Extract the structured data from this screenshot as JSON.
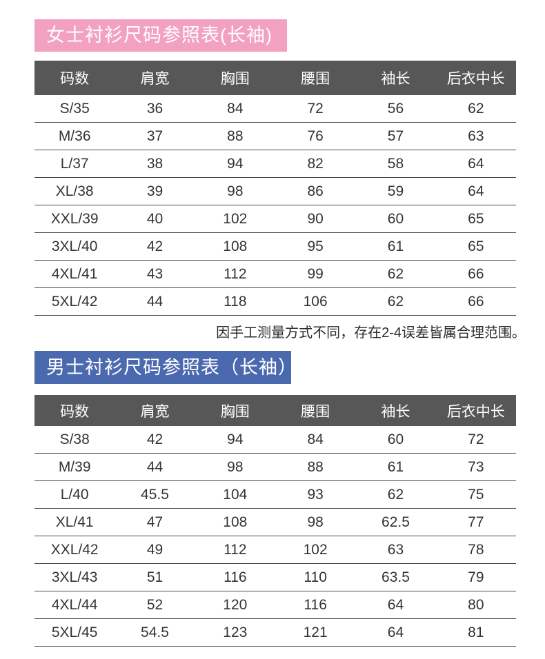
{
  "colors": {
    "women_banner": "#f2a1c1",
    "men_banner": "#4b69af",
    "table_header_bg": "#575757",
    "table_header_text": "#ffffff",
    "body_text": "#333333",
    "row_divider": "#484848",
    "page_background": "#ffffff"
  },
  "note": "因手工测量方式不同，存在2-4误差皆属合理范围。",
  "women": {
    "title": "女士衬衫尺码参照表(长袖)",
    "headers": [
      "码数",
      "肩宽",
      "胸围",
      "腰围",
      "袖长",
      "后衣中长"
    ],
    "rows": [
      [
        "S/35",
        "36",
        "84",
        "72",
        "56",
        "62"
      ],
      [
        "M/36",
        "37",
        "88",
        "76",
        "57",
        "63"
      ],
      [
        "L/37",
        "38",
        "94",
        "82",
        "58",
        "64"
      ],
      [
        "XL/38",
        "39",
        "98",
        "86",
        "59",
        "64"
      ],
      [
        "XXL/39",
        "40",
        "102",
        "90",
        "60",
        "65"
      ],
      [
        "3XL/40",
        "42",
        "108",
        "95",
        "61",
        "65"
      ],
      [
        "4XL/41",
        "43",
        "112",
        "99",
        "62",
        "66"
      ],
      [
        "5XL/42",
        "44",
        "118",
        "106",
        "62",
        "66"
      ]
    ]
  },
  "men": {
    "title": "男士衬衫尺码参照表（长袖）",
    "headers": [
      "码数",
      "肩宽",
      "胸围",
      "腰围",
      "袖长",
      "后衣中长"
    ],
    "rows": [
      [
        "S/38",
        "42",
        "94",
        "84",
        "60",
        "72"
      ],
      [
        "M/39",
        "44",
        "98",
        "88",
        "61",
        "73"
      ],
      [
        "L/40",
        "45.5",
        "104",
        "93",
        "62",
        "75"
      ],
      [
        "XL/41",
        "47",
        "108",
        "98",
        "62.5",
        "77"
      ],
      [
        "XXL/42",
        "49",
        "112",
        "102",
        "63",
        "78"
      ],
      [
        "3XL/43",
        "51",
        "116",
        "110",
        "63.5",
        "79"
      ],
      [
        "4XL/44",
        "52",
        "120",
        "116",
        "64",
        "80"
      ],
      [
        "5XL/45",
        "54.5",
        "123",
        "121",
        "64",
        "81"
      ]
    ]
  }
}
